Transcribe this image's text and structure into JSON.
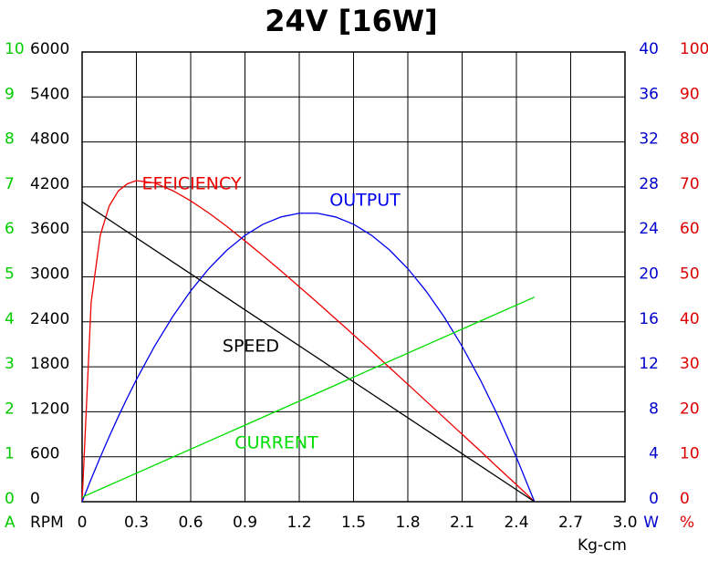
{
  "chart_data": {
    "type": "line",
    "title": "24V [16W]",
    "xlabel": "Kg-cm",
    "xlim": [
      0,
      3
    ],
    "xticks": [
      0,
      0.3,
      0.6,
      0.9,
      1.2,
      1.5,
      1.8,
      2.1,
      2.4,
      2.7,
      {
        "value": 3,
        "label": "3.0"
      }
    ],
    "grid": true,
    "axes": [
      {
        "label": "A",
        "color": "#00cc00",
        "lim": [
          0,
          10
        ],
        "ticks": [
          0,
          1,
          2,
          3,
          4,
          5,
          6,
          7,
          8,
          9,
          10
        ]
      },
      {
        "label": "RPM",
        "color": "#000000",
        "lim": [
          0,
          6000
        ],
        "ticks": [
          0,
          600,
          1200,
          1800,
          2400,
          3000,
          3600,
          4200,
          4800,
          5400,
          6000
        ]
      },
      {
        "label": "W",
        "color": "#0000cc",
        "lim": [
          0,
          40
        ],
        "ticks": [
          0,
          4,
          8,
          12,
          16,
          20,
          24,
          28,
          32,
          36,
          40
        ]
      },
      {
        "label": "%",
        "color": "#dd0000",
        "lim": [
          0,
          100
        ],
        "ticks": [
          0,
          10,
          20,
          30,
          40,
          50,
          60,
          70,
          80,
          90,
          100
        ]
      }
    ],
    "series": [
      {
        "name": "EFFICIENCY",
        "color": "#ee0000",
        "axis": 3,
        "x": [
          0,
          0.05,
          0.1,
          0.15,
          0.2,
          0.25,
          0.3,
          0.4,
          0.5,
          0.6,
          0.7,
          0.8,
          0.9,
          1.0,
          1.1,
          1.2,
          1.3,
          1.4,
          1.5,
          1.6,
          1.7,
          1.8,
          1.9,
          2.0,
          2.1,
          2.2,
          2.3,
          2.4,
          2.5
        ],
        "values": [
          0,
          44.4,
          59.2,
          65.8,
          69.1,
          70.7,
          71.4,
          70.9,
          69.2,
          66.9,
          64.2,
          61.2,
          58.0,
          54.7,
          51.3,
          47.8,
          44.3,
          40.7,
          37.1,
          33.5,
          29.8,
          26.1,
          22.4,
          18.7,
          15.0,
          11.3,
          7.5,
          3.8,
          0
        ]
      },
      {
        "name": "OUTPUT",
        "color": "#0000ee",
        "axis": 2,
        "x": [
          0,
          0.05,
          0.1,
          0.15,
          0.2,
          0.25,
          0.3,
          0.4,
          0.5,
          0.6,
          0.7,
          0.8,
          0.9,
          1.0,
          1.1,
          1.2,
          1.3,
          1.4,
          1.5,
          1.6,
          1.7,
          1.8,
          1.9,
          2.0,
          2.1,
          2.2,
          2.3,
          2.4,
          2.5
        ],
        "values": [
          0,
          2.02,
          3.95,
          5.8,
          7.57,
          9.25,
          10.86,
          13.82,
          16.45,
          18.75,
          20.73,
          22.37,
          23.69,
          24.68,
          25.33,
          25.66,
          25.66,
          25.33,
          24.68,
          23.69,
          22.37,
          20.73,
          18.75,
          16.45,
          13.82,
          10.86,
          7.57,
          3.95,
          0
        ]
      },
      {
        "name": "SPEED",
        "color": "#000000",
        "axis": 1,
        "x": [
          0,
          2.5
        ],
        "values": [
          4000,
          0
        ]
      },
      {
        "name": "CURRENT",
        "color": "#00dd00",
        "axis": 0,
        "x": [
          0,
          2.5
        ],
        "values": [
          0.1,
          4.55
        ]
      }
    ]
  }
}
